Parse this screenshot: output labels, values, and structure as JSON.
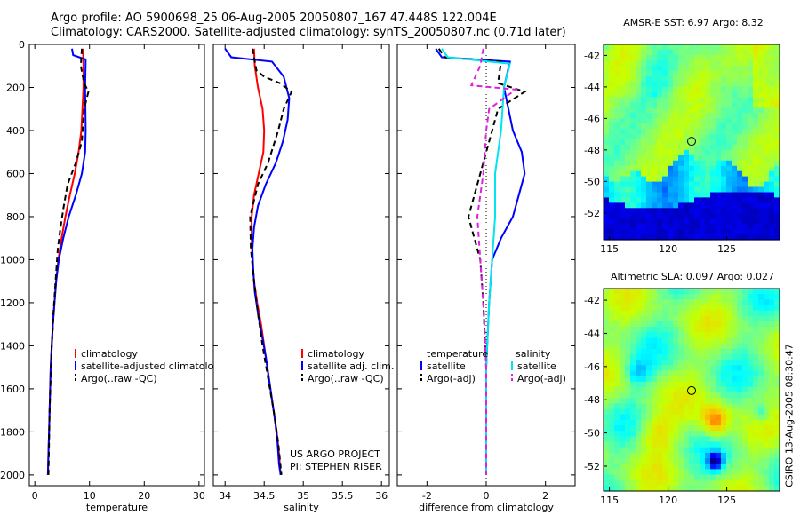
{
  "header": {
    "line1": "Argo profile: AO 5900698_25 06-Aug-2005 20050807_167 47.448S 122.004E",
    "line2": "Climatology: CARS2000. Satellite-adjusted climatology: synTS_20050807.nc (0.71d later)"
  },
  "credit": {
    "line1": "US ARGO PROJECT",
    "line2": "PI: STEPHEN RISER"
  },
  "side_note": "CSIRO 13-Aug-2005 08:30:47",
  "colors": {
    "climatology": "#ff0000",
    "satellite": "#0000ff",
    "argo": "#000000",
    "satellite_sal": "#00e5ee",
    "argo_sal": "#e020e0"
  },
  "chart_data": [
    {
      "type": "line",
      "xlabel": "temperature",
      "ylabel": "",
      "xlim": [
        -1,
        31
      ],
      "ylim": [
        2050,
        0
      ],
      "xticks": [
        0,
        10,
        20,
        30
      ],
      "yticks": [
        0,
        200,
        400,
        600,
        800,
        1000,
        1200,
        1400,
        1600,
        1800,
        2000
      ],
      "legend": "lower-left",
      "series": [
        {
          "name": "climatology",
          "color": "#ff0000",
          "style": "solid",
          "points": [
            [
              8.8,
              20
            ],
            [
              8.9,
              100
            ],
            [
              8.9,
              200
            ],
            [
              8.7,
              300
            ],
            [
              8.5,
              400
            ],
            [
              8.0,
              500
            ],
            [
              7.3,
              600
            ],
            [
              6.4,
              700
            ],
            [
              5.6,
              800
            ],
            [
              4.9,
              900
            ],
            [
              4.3,
              1000
            ],
            [
              3.9,
              1100
            ],
            [
              3.6,
              1200
            ],
            [
              3.3,
              1300
            ],
            [
              3.1,
              1400
            ],
            [
              2.9,
              1500
            ],
            [
              2.8,
              1600
            ],
            [
              2.7,
              1700
            ],
            [
              2.6,
              1800
            ],
            [
              2.5,
              1900
            ],
            [
              2.4,
              2000
            ]
          ]
        },
        {
          "name": "satellite-adjusted climatology",
          "color": "#0000ff",
          "style": "solid",
          "points": [
            [
              6.8,
              20
            ],
            [
              7.0,
              50
            ],
            [
              9.3,
              70
            ],
            [
              9.2,
              200
            ],
            [
              9.3,
              400
            ],
            [
              9.2,
              500
            ],
            [
              8.6,
              600
            ],
            [
              7.5,
              700
            ],
            [
              6.2,
              800
            ],
            [
              5.2,
              900
            ],
            [
              4.4,
              1000
            ],
            [
              3.9,
              1100
            ],
            [
              3.6,
              1200
            ],
            [
              3.3,
              1300
            ],
            [
              3.1,
              1400
            ],
            [
              2.9,
              1500
            ],
            [
              2.8,
              1600
            ],
            [
              2.7,
              1700
            ],
            [
              2.6,
              1800
            ],
            [
              2.5,
              1900
            ],
            [
              2.4,
              2000
            ]
          ]
        },
        {
          "name": "Argo(..raw -QC)",
          "color": "#000000",
          "style": "dashed",
          "points": [
            [
              8.6,
              20
            ],
            [
              8.4,
              100
            ],
            [
              9.0,
              180
            ],
            [
              9.8,
              220
            ],
            [
              9.0,
              300
            ],
            [
              8.6,
              450
            ],
            [
              7.5,
              550
            ],
            [
              6.0,
              650
            ],
            [
              5.3,
              750
            ],
            [
              4.7,
              850
            ],
            [
              4.2,
              950
            ],
            [
              3.8,
              1100
            ],
            [
              3.4,
              1250
            ],
            [
              3.1,
              1400
            ],
            [
              2.9,
              1550
            ],
            [
              2.7,
              1700
            ],
            [
              2.6,
              1850
            ],
            [
              2.5,
              2000
            ]
          ]
        }
      ]
    },
    {
      "type": "line",
      "xlabel": "salinity",
      "ylabel": "",
      "xlim": [
        33.85,
        36.1
      ],
      "ylim": [
        2050,
        0
      ],
      "xticks": [
        34,
        34.5,
        35,
        35.5,
        36
      ],
      "legend": "lower-right",
      "series": [
        {
          "name": "climatology",
          "color": "#ff0000",
          "style": "solid",
          "points": [
            [
              34.37,
              20
            ],
            [
              34.38,
              100
            ],
            [
              34.42,
              200
            ],
            [
              34.48,
              300
            ],
            [
              34.5,
              400
            ],
            [
              34.49,
              500
            ],
            [
              34.43,
              600
            ],
            [
              34.37,
              700
            ],
            [
              34.34,
              800
            ],
            [
              34.34,
              900
            ],
            [
              34.35,
              1000
            ],
            [
              34.37,
              1100
            ],
            [
              34.41,
              1200
            ],
            [
              34.46,
              1300
            ],
            [
              34.5,
              1400
            ],
            [
              34.54,
              1500
            ],
            [
              34.58,
              1600
            ],
            [
              34.62,
              1700
            ],
            [
              34.66,
              1800
            ],
            [
              34.69,
              1900
            ],
            [
              34.71,
              2000
            ]
          ]
        },
        {
          "name": "satellite adj. clim.",
          "color": "#0000ff",
          "style": "solid",
          "points": [
            [
              34.0,
              20
            ],
            [
              34.08,
              60
            ],
            [
              34.6,
              80
            ],
            [
              34.75,
              150
            ],
            [
              34.82,
              250
            ],
            [
              34.8,
              350
            ],
            [
              34.74,
              450
            ],
            [
              34.65,
              550
            ],
            [
              34.52,
              650
            ],
            [
              34.42,
              750
            ],
            [
              34.37,
              850
            ],
            [
              34.35,
              950
            ],
            [
              34.36,
              1050
            ],
            [
              34.38,
              1150
            ],
            [
              34.42,
              1250
            ],
            [
              34.47,
              1350
            ],
            [
              34.52,
              1450
            ],
            [
              34.56,
              1550
            ],
            [
              34.6,
              1650
            ],
            [
              34.64,
              1750
            ],
            [
              34.67,
              1850
            ],
            [
              34.69,
              1950
            ],
            [
              34.71,
              2000
            ]
          ]
        },
        {
          "name": "Argo(..raw -QC)",
          "color": "#000000",
          "style": "dashed",
          "points": [
            [
              34.35,
              20
            ],
            [
              34.4,
              120
            ],
            [
              34.5,
              150
            ],
            [
              34.7,
              180
            ],
            [
              34.85,
              220
            ],
            [
              34.75,
              300
            ],
            [
              34.68,
              400
            ],
            [
              34.55,
              550
            ],
            [
              34.42,
              650
            ],
            [
              34.32,
              800
            ],
            [
              34.33,
              950
            ],
            [
              34.37,
              1100
            ],
            [
              34.42,
              1250
            ],
            [
              34.48,
              1400
            ],
            [
              34.55,
              1550
            ],
            [
              34.62,
              1700
            ],
            [
              34.68,
              1850
            ],
            [
              34.72,
              2000
            ]
          ]
        }
      ]
    },
    {
      "type": "line",
      "xlabel": "difference from climatology",
      "ylabel": "",
      "xlim": [
        -3.0,
        3.0
      ],
      "ylim": [
        2050,
        0
      ],
      "xticks": [
        -2,
        0,
        2
      ],
      "legend": "lower-left",
      "legend_headers": [
        "temperature",
        "salinity"
      ],
      "zero_line": "dotted",
      "series": [
        {
          "name": "satellite",
          "group": "temperature",
          "color": "#0000ff",
          "style": "solid",
          "points": [
            [
              -1.7,
              20
            ],
            [
              -1.5,
              60
            ],
            [
              0.8,
              80
            ],
            [
              0.6,
              200
            ],
            [
              0.9,
              400
            ],
            [
              1.2,
              500
            ],
            [
              1.3,
              600
            ],
            [
              1.1,
              700
            ],
            [
              0.9,
              800
            ],
            [
              0.5,
              900
            ],
            [
              0.2,
              1000
            ],
            [
              0.1,
              1200
            ],
            [
              0.0,
              1500
            ],
            [
              0.0,
              2000
            ]
          ]
        },
        {
          "name": "Argo(-adj)",
          "group": "temperature",
          "color": "#000000",
          "style": "dashed",
          "points": [
            [
              -1.6,
              20
            ],
            [
              -1.4,
              60
            ],
            [
              0.5,
              80
            ],
            [
              0.4,
              180
            ],
            [
              1.3,
              220
            ],
            [
              0.4,
              300
            ],
            [
              0.2,
              400
            ],
            [
              0.0,
              500
            ],
            [
              -0.4,
              700
            ],
            [
              -0.6,
              800
            ],
            [
              -0.2,
              1000
            ],
            [
              -0.1,
              1200
            ],
            [
              0.0,
              1500
            ],
            [
              0.0,
              2000
            ]
          ]
        },
        {
          "name": "satellite",
          "group": "salinity",
          "color": "#00e5ee",
          "style": "solid",
          "points": [
            [
              -1.5,
              20
            ],
            [
              -1.3,
              60
            ],
            [
              0.8,
              90
            ],
            [
              0.6,
              200
            ],
            [
              0.5,
              400
            ],
            [
              0.3,
              600
            ],
            [
              0.3,
              800
            ],
            [
              0.2,
              1000
            ],
            [
              0.1,
              1200
            ],
            [
              0.0,
              1500
            ],
            [
              0.0,
              2000
            ]
          ]
        },
        {
          "name": "Argo(-adj)",
          "group": "salinity",
          "color": "#e020e0",
          "style": "dashed",
          "points": [
            [
              -0.1,
              20
            ],
            [
              -0.2,
              100
            ],
            [
              -0.5,
              190
            ],
            [
              1.0,
              210
            ],
            [
              0.1,
              300
            ],
            [
              0.0,
              400
            ],
            [
              -0.1,
              600
            ],
            [
              -0.3,
              800
            ],
            [
              -0.2,
              1000
            ],
            [
              -0.1,
              1200
            ],
            [
              0.0,
              1500
            ],
            [
              0.0,
              2000
            ]
          ]
        }
      ]
    },
    {
      "type": "heatmap",
      "title": "AMSR-E SST: 6.97 Argo: 8.32",
      "xlim": [
        114.5,
        129.5
      ],
      "ylim": [
        -53.7,
        -41.3
      ],
      "xticks": [
        115,
        120,
        125
      ],
      "yticks": [
        -42,
        -44,
        -46,
        -48,
        -50,
        -52
      ],
      "marker": {
        "lon": 122.0,
        "lat": -47.45
      }
    },
    {
      "type": "heatmap",
      "title": "Altimetric SLA: 0.097 Argo: 0.027",
      "xlim": [
        114.5,
        129.5
      ],
      "ylim": [
        -53.5,
        -41.3
      ],
      "xticks": [
        115,
        120,
        125
      ],
      "yticks": [
        -42,
        -44,
        -46,
        -48,
        -50,
        -52
      ],
      "marker": {
        "lon": 122.0,
        "lat": -47.45
      }
    }
  ]
}
